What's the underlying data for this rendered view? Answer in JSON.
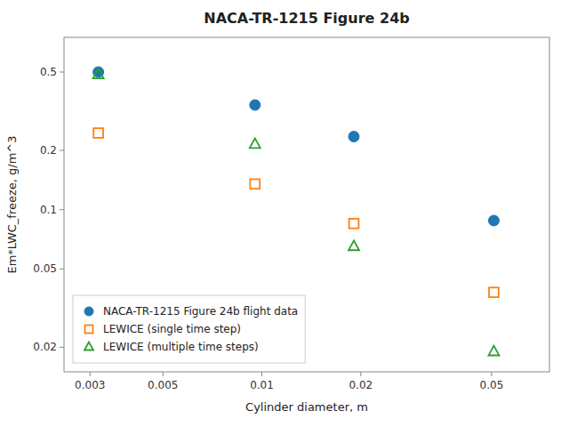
{
  "chart_data": {
    "type": "scatter",
    "title": "NACA-TR-1215 Figure 24b",
    "xlabel": "Cylinder diameter, m",
    "ylabel": "Em*LWC_freeze, g/m^3",
    "x": [
      0.00318,
      0.00953,
      0.01905,
      0.0508
    ],
    "series": [
      {
        "name": "NACA-TR-1215 Figure 24b flight data",
        "color": "#1f77b4",
        "marker": "circle",
        "values": [
          0.5,
          0.34,
          0.235,
          0.088
        ]
      },
      {
        "name": "LEWICE (single time step)",
        "color": "#ff7f0e",
        "marker": "open-square",
        "values": [
          0.245,
          0.135,
          0.085,
          0.038
        ]
      },
      {
        "name": "LEWICE (multiple time steps)",
        "color": "#2ca02c",
        "marker": "open-triangle",
        "values": [
          0.485,
          0.215,
          0.065,
          0.019
        ]
      }
    ],
    "xlim": [
      0.0025,
      0.075
    ],
    "ylim": [
      0.015,
      0.75
    ],
    "xticks": [
      0.003,
      0.005,
      0.01,
      0.02,
      0.05
    ],
    "yticks": [
      0.02,
      0.05,
      0.1,
      0.2,
      0.5
    ],
    "log": true,
    "grid": false,
    "legend": "lower left"
  }
}
